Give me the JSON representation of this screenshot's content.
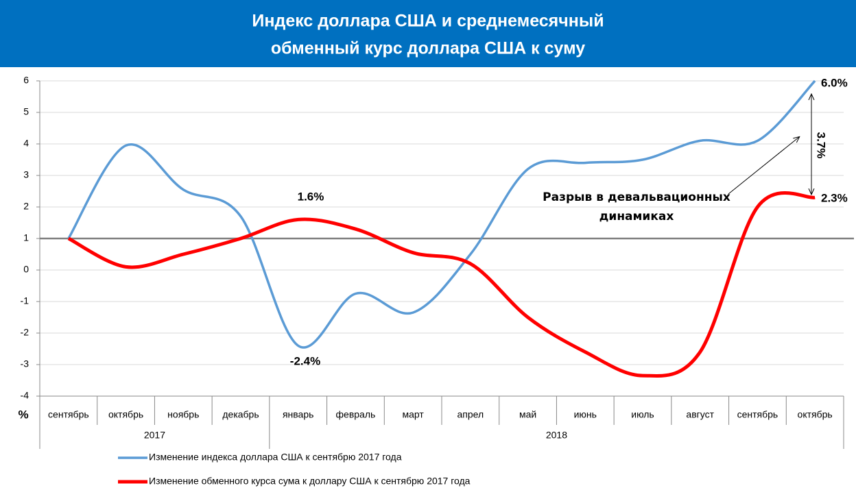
{
  "chart_data": {
    "type": "line",
    "title_lines": [
      "Индекс доллара США и среднемесячный",
      "обменный курс доллара США к суму"
    ],
    "y_label": "%",
    "categories": [
      "сентябрь",
      "октябрь",
      "ноябрь",
      "декабрь",
      "январь",
      "февраль",
      "март",
      "апрел",
      "май",
      "июнь",
      "июль",
      "август",
      "сентябрь",
      "октябрь"
    ],
    "years": [
      "2017",
      "2018"
    ],
    "series": [
      {
        "name": "Изменение индекса доллара США к сентябрю 2017 года",
        "color": "#5b9bd5",
        "values": [
          1,
          3.95,
          2.55,
          1.7,
          -2.4,
          -0.75,
          -1.35,
          0.5,
          3.2,
          3.4,
          3.5,
          4.1,
          4.1,
          6.0
        ]
      },
      {
        "name": "Изменение обменного курса сума к доллару США к сентябрю 2017 года",
        "color": "#ff0000",
        "values": [
          1,
          0.1,
          0.5,
          1.0,
          1.6,
          1.3,
          0.55,
          0.2,
          -1.5,
          -2.6,
          -3.35,
          -2.6,
          2.0,
          2.3
        ]
      }
    ],
    "reference_line": 1,
    "annotations": [
      "6.0%",
      "2.3%",
      "1.6%",
      "-2.4%",
      "3.7%",
      "Разрыв в девальвационных",
      "динамиках"
    ],
    "ylim": [
      -4,
      6
    ],
    "yticks": [
      -4,
      -3,
      -2,
      -1,
      0,
      1,
      2,
      3,
      4,
      5,
      6
    ],
    "grid": true
  }
}
